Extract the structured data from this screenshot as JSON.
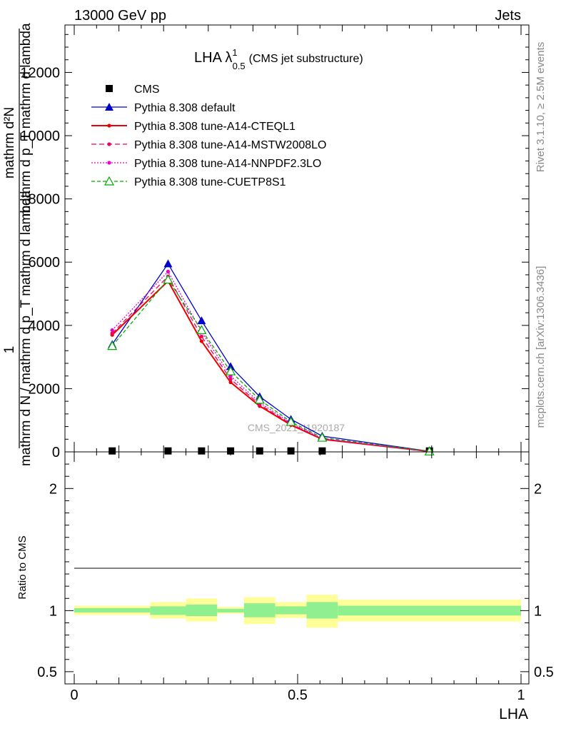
{
  "header": {
    "left": "13000 GeV pp",
    "right": "Jets"
  },
  "side_labels": {
    "top": "Rivet 3.1.10, ≥ 2.5M events",
    "bottom": "mcplots.cern.ch [arXiv:1306.3436]"
  },
  "watermark": "CMS_2021_I1920187",
  "colors": {
    "cms": "#000000",
    "default": "#0000cc",
    "cteql1": "#ee0000",
    "mstw": "#ee0066",
    "nnpdf": "#ee00cc",
    "cuetp8s1": "#00aa00",
    "band_inner": "#90f090",
    "band_outer": "#ffff99"
  },
  "chart_data": [
    {
      "type": "line",
      "title": "LHA λ",
      "title_sup": "1",
      "title_sub": "0.5",
      "title_note": "(CMS jet substructure)",
      "ylabel_numer": "1",
      "ylabel_denom": "mathrm d N / mathrm d p_T mathrm d lambda",
      "ylabel_top": "mathrm d²N",
      "ylabel_bottom": "mathrm d p_T mathrm d lambda",
      "xlim": [
        0,
        1
      ],
      "ylim": [
        0,
        13500
      ],
      "yticks": [
        0,
        2000,
        4000,
        6000,
        8000,
        10000,
        12000
      ],
      "ytick_labels": [
        "0",
        "2000",
        "4000",
        "6000",
        "8000",
        "10000",
        "12000"
      ],
      "legend_position": "top-left",
      "x": [
        0.085,
        0.21,
        0.285,
        0.35,
        0.415,
        0.485,
        0.555,
        0.795
      ],
      "series": [
        {
          "name": "CMS",
          "key": "cms",
          "marker": "square",
          "values": [
            30,
            30,
            30,
            30,
            30,
            30,
            30,
            30
          ]
        },
        {
          "name": "Pythia 8.308 default",
          "key": "default",
          "marker": "triangle",
          "dash": "",
          "values": [
            3400,
            5950,
            4150,
            2700,
            1750,
            1030,
            500,
            20
          ]
        },
        {
          "name": "Pythia 8.308 tune-A14-CTEQL1",
          "key": "cteql1",
          "marker": "dot",
          "dash": "",
          "values": [
            3700,
            5400,
            3500,
            2200,
            1450,
            850,
            400,
            15
          ]
        },
        {
          "name": "Pythia 8.308 tune-A14-MSTW2008LO",
          "key": "mstw",
          "marker": "dot",
          "dash": "7,4",
          "values": [
            3750,
            5550,
            3650,
            2300,
            1500,
            880,
            410,
            15
          ]
        },
        {
          "name": "Pythia 8.308 tune-A14-NNPDF2.3LO",
          "key": "nnpdf",
          "marker": "dot",
          "dash": "2,2",
          "values": [
            3850,
            5700,
            3800,
            2400,
            1560,
            910,
            420,
            15
          ]
        },
        {
          "name": "Pythia 8.308 tune-CUETP8S1",
          "key": "cuetp8s1",
          "marker": "open-triangle",
          "dash": "5,3",
          "values": [
            3350,
            5450,
            3850,
            2550,
            1650,
            950,
            450,
            15
          ]
        }
      ]
    },
    {
      "type": "area",
      "xlabel": "LHA",
      "ylabel": "Ratio to CMS",
      "xlim": [
        0,
        1
      ],
      "ylim": [
        0.4,
        2.3
      ],
      "yticks": [
        0.5,
        1,
        2
      ],
      "ytick_labels": [
        "0.5",
        "1",
        "2"
      ],
      "xticks": [
        0,
        0.5,
        1
      ],
      "xtick_labels": [
        "0",
        "0.5",
        "1"
      ],
      "bins": [
        [
          0,
          0.17
        ],
        [
          0.17,
          0.25
        ],
        [
          0.25,
          0.32
        ],
        [
          0.32,
          0.38
        ],
        [
          0.38,
          0.45
        ],
        [
          0.45,
          0.52
        ],
        [
          0.52,
          0.59
        ],
        [
          0.59,
          1.0
        ]
      ],
      "band_inner": [
        [
          0.985,
          1.02
        ],
        [
          0.965,
          1.035
        ],
        [
          0.955,
          1.05
        ],
        [
          0.985,
          1.015
        ],
        [
          0.945,
          1.06
        ],
        [
          0.97,
          1.035
        ],
        [
          0.935,
          1.07
        ],
        [
          0.96,
          1.04
        ]
      ],
      "band_outer": [
        [
          0.965,
          1.04
        ],
        [
          0.935,
          1.07
        ],
        [
          0.91,
          1.1
        ],
        [
          0.975,
          1.03
        ],
        [
          0.89,
          1.11
        ],
        [
          0.94,
          1.07
        ],
        [
          0.86,
          1.13
        ],
        [
          0.91,
          1.09
        ]
      ]
    }
  ]
}
